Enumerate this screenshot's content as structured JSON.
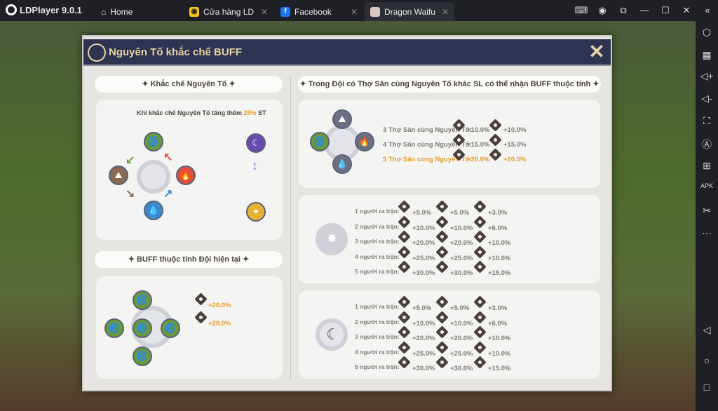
{
  "app": {
    "title": "LDPlayer 9.0.1"
  },
  "tabs": [
    {
      "label": "Home",
      "icon": "home-icon"
    },
    {
      "label": "Cửa hàng LD",
      "icon": "gamepad-icon"
    },
    {
      "label": "Facebook",
      "icon": "facebook-icon"
    },
    {
      "label": "Dragon Waifu",
      "icon": "game-avatar-icon",
      "active": true
    }
  ],
  "dialog": {
    "title": "Nguyên Tố khắc chế BUFF",
    "left": {
      "section1_title": "✦ Khắc chế Nguyên Tố ✦",
      "counter_text_prefix": "Khi khắc chế Nguyên Tố tăng thêm ",
      "counter_value": "25%",
      "counter_text_suffix": " ST",
      "section2_title": "✦ BUFF thuộc tính Đội hiện tại ✦",
      "current_buffs": [
        "+20.0%",
        "+20.0%"
      ]
    },
    "right": {
      "section_title": "✦ Trong Đội có Thợ Săn cùng Nguyên Tố khác SL có thể nhận BUFF thuộc tính ✦",
      "same_element": [
        {
          "label": "3 Thợ Săn cùng Nguyên Tố:",
          "atk": "+10.0%",
          "hp": "+10.0%",
          "active": false
        },
        {
          "label": "4 Thợ Săn cùng Nguyên Tố:",
          "atk": "+15.0%",
          "hp": "+15.0%",
          "active": false
        },
        {
          "label": "5 Thợ Săn cùng Nguyên Tố:",
          "atk": "+20.0%",
          "hp": "+20.0%",
          "active": true
        }
      ],
      "light": [
        {
          "label": "1 người ra trận:",
          "atk": "+5.0%",
          "hp": "+5.0%",
          "extra": "+3.0%"
        },
        {
          "label": "2 người ra trận:",
          "atk": "+10.0%",
          "hp": "+10.0%",
          "extra": "+6.0%"
        },
        {
          "label": "3 người ra trận:",
          "atk": "+20.0%",
          "hp": "+20.0%",
          "extra": "+10.0%"
        },
        {
          "label": "4 người ra trận:",
          "atk": "+25.0%",
          "hp": "+25.0%",
          "extra": "+10.0%"
        },
        {
          "label": "5 người ra trận:",
          "atk": "+30.0%",
          "hp": "+30.0%",
          "extra": "+15.0%"
        }
      ],
      "dark": [
        {
          "label": "1 người ra trận:",
          "atk": "+5.0%",
          "hp": "+5.0%",
          "extra": "+3.0%"
        },
        {
          "label": "2 người ra trận:",
          "atk": "+10.0%",
          "hp": "+10.0%",
          "extra": "+6.0%"
        },
        {
          "label": "3 người ra trận:",
          "atk": "+20.0%",
          "hp": "+20.0%",
          "extra": "+10.0%"
        },
        {
          "label": "4 người ra trận:",
          "atk": "+25.0%",
          "hp": "+25.0%",
          "extra": "+10.0%"
        },
        {
          "label": "5 người ra trận:",
          "atk": "+30.0%",
          "hp": "+30.0%",
          "extra": "+15.0%"
        }
      ]
    }
  },
  "colors": {
    "wind": "#6a9a3a",
    "fire": "#e0503a",
    "water": "#3a8ad0",
    "earth": "#8a6a50",
    "light": "#e8b030",
    "dark": "#6a4ab0",
    "highlight": "#e49a2a"
  }
}
